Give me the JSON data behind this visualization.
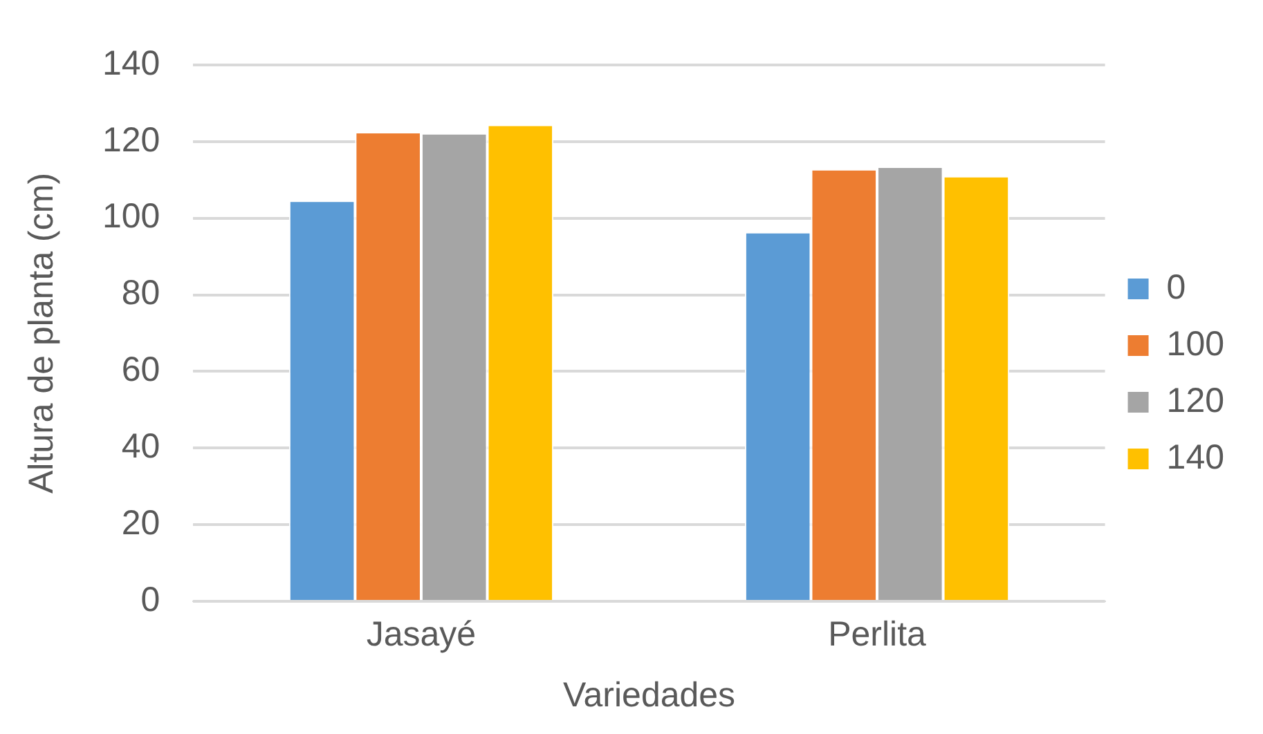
{
  "chart_data": {
    "type": "bar",
    "xlabel": "Variedades",
    "ylabel": "Altura de planta (cm)",
    "categories": [
      "Jasayé",
      "Perlita"
    ],
    "series": [
      {
        "name": "0",
        "color": "#5b9bd5",
        "values": [
          104.6,
          96.4
        ]
      },
      {
        "name": "100",
        "color": "#ed7d31",
        "values": [
          122.5,
          112.8
        ]
      },
      {
        "name": "120",
        "color": "#a5a5a5",
        "values": [
          122.2,
          113.5
        ]
      },
      {
        "name": "140",
        "color": "#ffc000",
        "values": [
          124.4,
          111
        ]
      }
    ],
    "ylim": [
      0,
      140
    ],
    "yticks": [
      0,
      20,
      40,
      60,
      80,
      100,
      120,
      140
    ],
    "grid": "y",
    "legend": "right"
  }
}
